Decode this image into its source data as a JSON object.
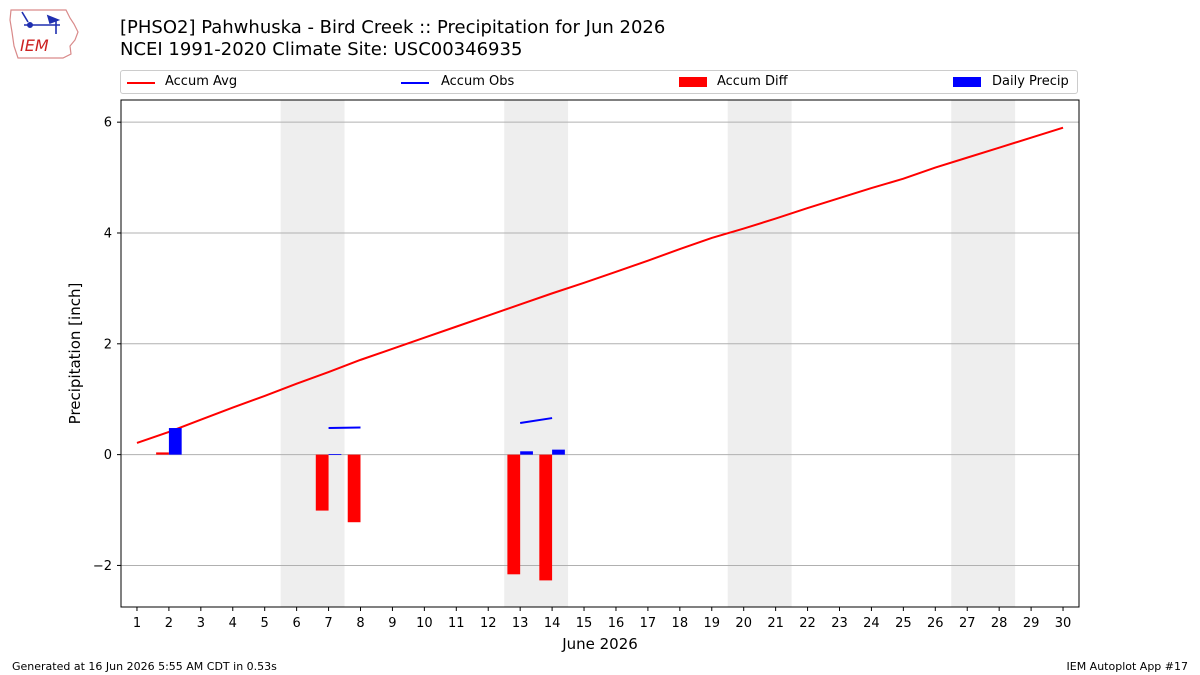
{
  "header": {
    "title_line1": "[PHSO2] Pahwhuska - Bird Creek :: Precipitation for Jun 2026",
    "title_line2": "NCEI 1991-2020 Climate Site: USC00346935"
  },
  "logo": {
    "text": "IEM"
  },
  "footer": {
    "generated": "Generated at 16 Jun 2026 5:55 AM CDT in 0.53s",
    "app": "IEM Autoplot App #17"
  },
  "colors": {
    "avg": "#ff0000",
    "obs": "#0000ff",
    "diff": "#ff0000",
    "daily": "#0000ff",
    "weekend": "#eeeeee"
  },
  "chart_data": {
    "type": "bar",
    "xlabel": "June 2026",
    "ylabel": "Precipitation [inch]",
    "xlim": [
      0.5,
      30.5
    ],
    "ylim": [
      -2.75,
      6.4
    ],
    "yticks": [
      -2,
      0,
      2,
      4,
      6
    ],
    "ytick_labels": [
      "−2",
      "0",
      "2",
      "4",
      "6"
    ],
    "days": [
      1,
      2,
      3,
      4,
      5,
      6,
      7,
      8,
      9,
      10,
      11,
      12,
      13,
      14,
      15,
      16,
      17,
      18,
      19,
      20,
      21,
      22,
      23,
      24,
      25,
      26,
      27,
      28,
      29,
      30
    ],
    "weekend_bands": [
      [
        6,
        7
      ],
      [
        13,
        14
      ],
      [
        20,
        21
      ],
      [
        27,
        28
      ]
    ],
    "grid": "y",
    "legend": {
      "placement": "top",
      "entries": [
        "Accum Avg",
        "Accum Obs",
        "Accum Diff",
        "Daily Precip"
      ]
    },
    "series": [
      {
        "name": "Accum Avg",
        "kind": "line",
        "x": [
          1,
          2,
          3,
          4,
          5,
          6,
          7,
          8,
          9,
          10,
          11,
          12,
          13,
          14,
          15,
          16,
          17,
          18,
          19,
          20,
          21,
          22,
          23,
          24,
          25,
          26,
          27,
          28,
          29,
          30
        ],
        "values": [
          0.21,
          0.41,
          0.63,
          0.85,
          1.06,
          1.28,
          1.49,
          1.71,
          1.91,
          2.11,
          2.31,
          2.51,
          2.71,
          2.91,
          3.1,
          3.3,
          3.5,
          3.71,
          3.91,
          4.08,
          4.26,
          4.45,
          4.63,
          4.81,
          4.98,
          5.18,
          5.36,
          5.54,
          5.72,
          5.9
        ]
      },
      {
        "name": "Accum Obs",
        "kind": "line_segments",
        "segments": [
          {
            "x": [
              7,
              8
            ],
            "values": [
              0.48,
              0.49
            ]
          },
          {
            "x": [
              13,
              14
            ],
            "values": [
              0.57,
              0.66
            ]
          }
        ]
      },
      {
        "name": "Accum Diff",
        "kind": "bar",
        "x": [
          2,
          7,
          8,
          13,
          14
        ],
        "values": [
          0.04,
          -1.01,
          -1.22,
          -2.16,
          -2.27
        ]
      },
      {
        "name": "Daily Precip",
        "kind": "bar",
        "x": [
          2,
          7,
          13,
          14
        ],
        "values": [
          0.48,
          0.01,
          0.06,
          0.09
        ]
      }
    ]
  }
}
